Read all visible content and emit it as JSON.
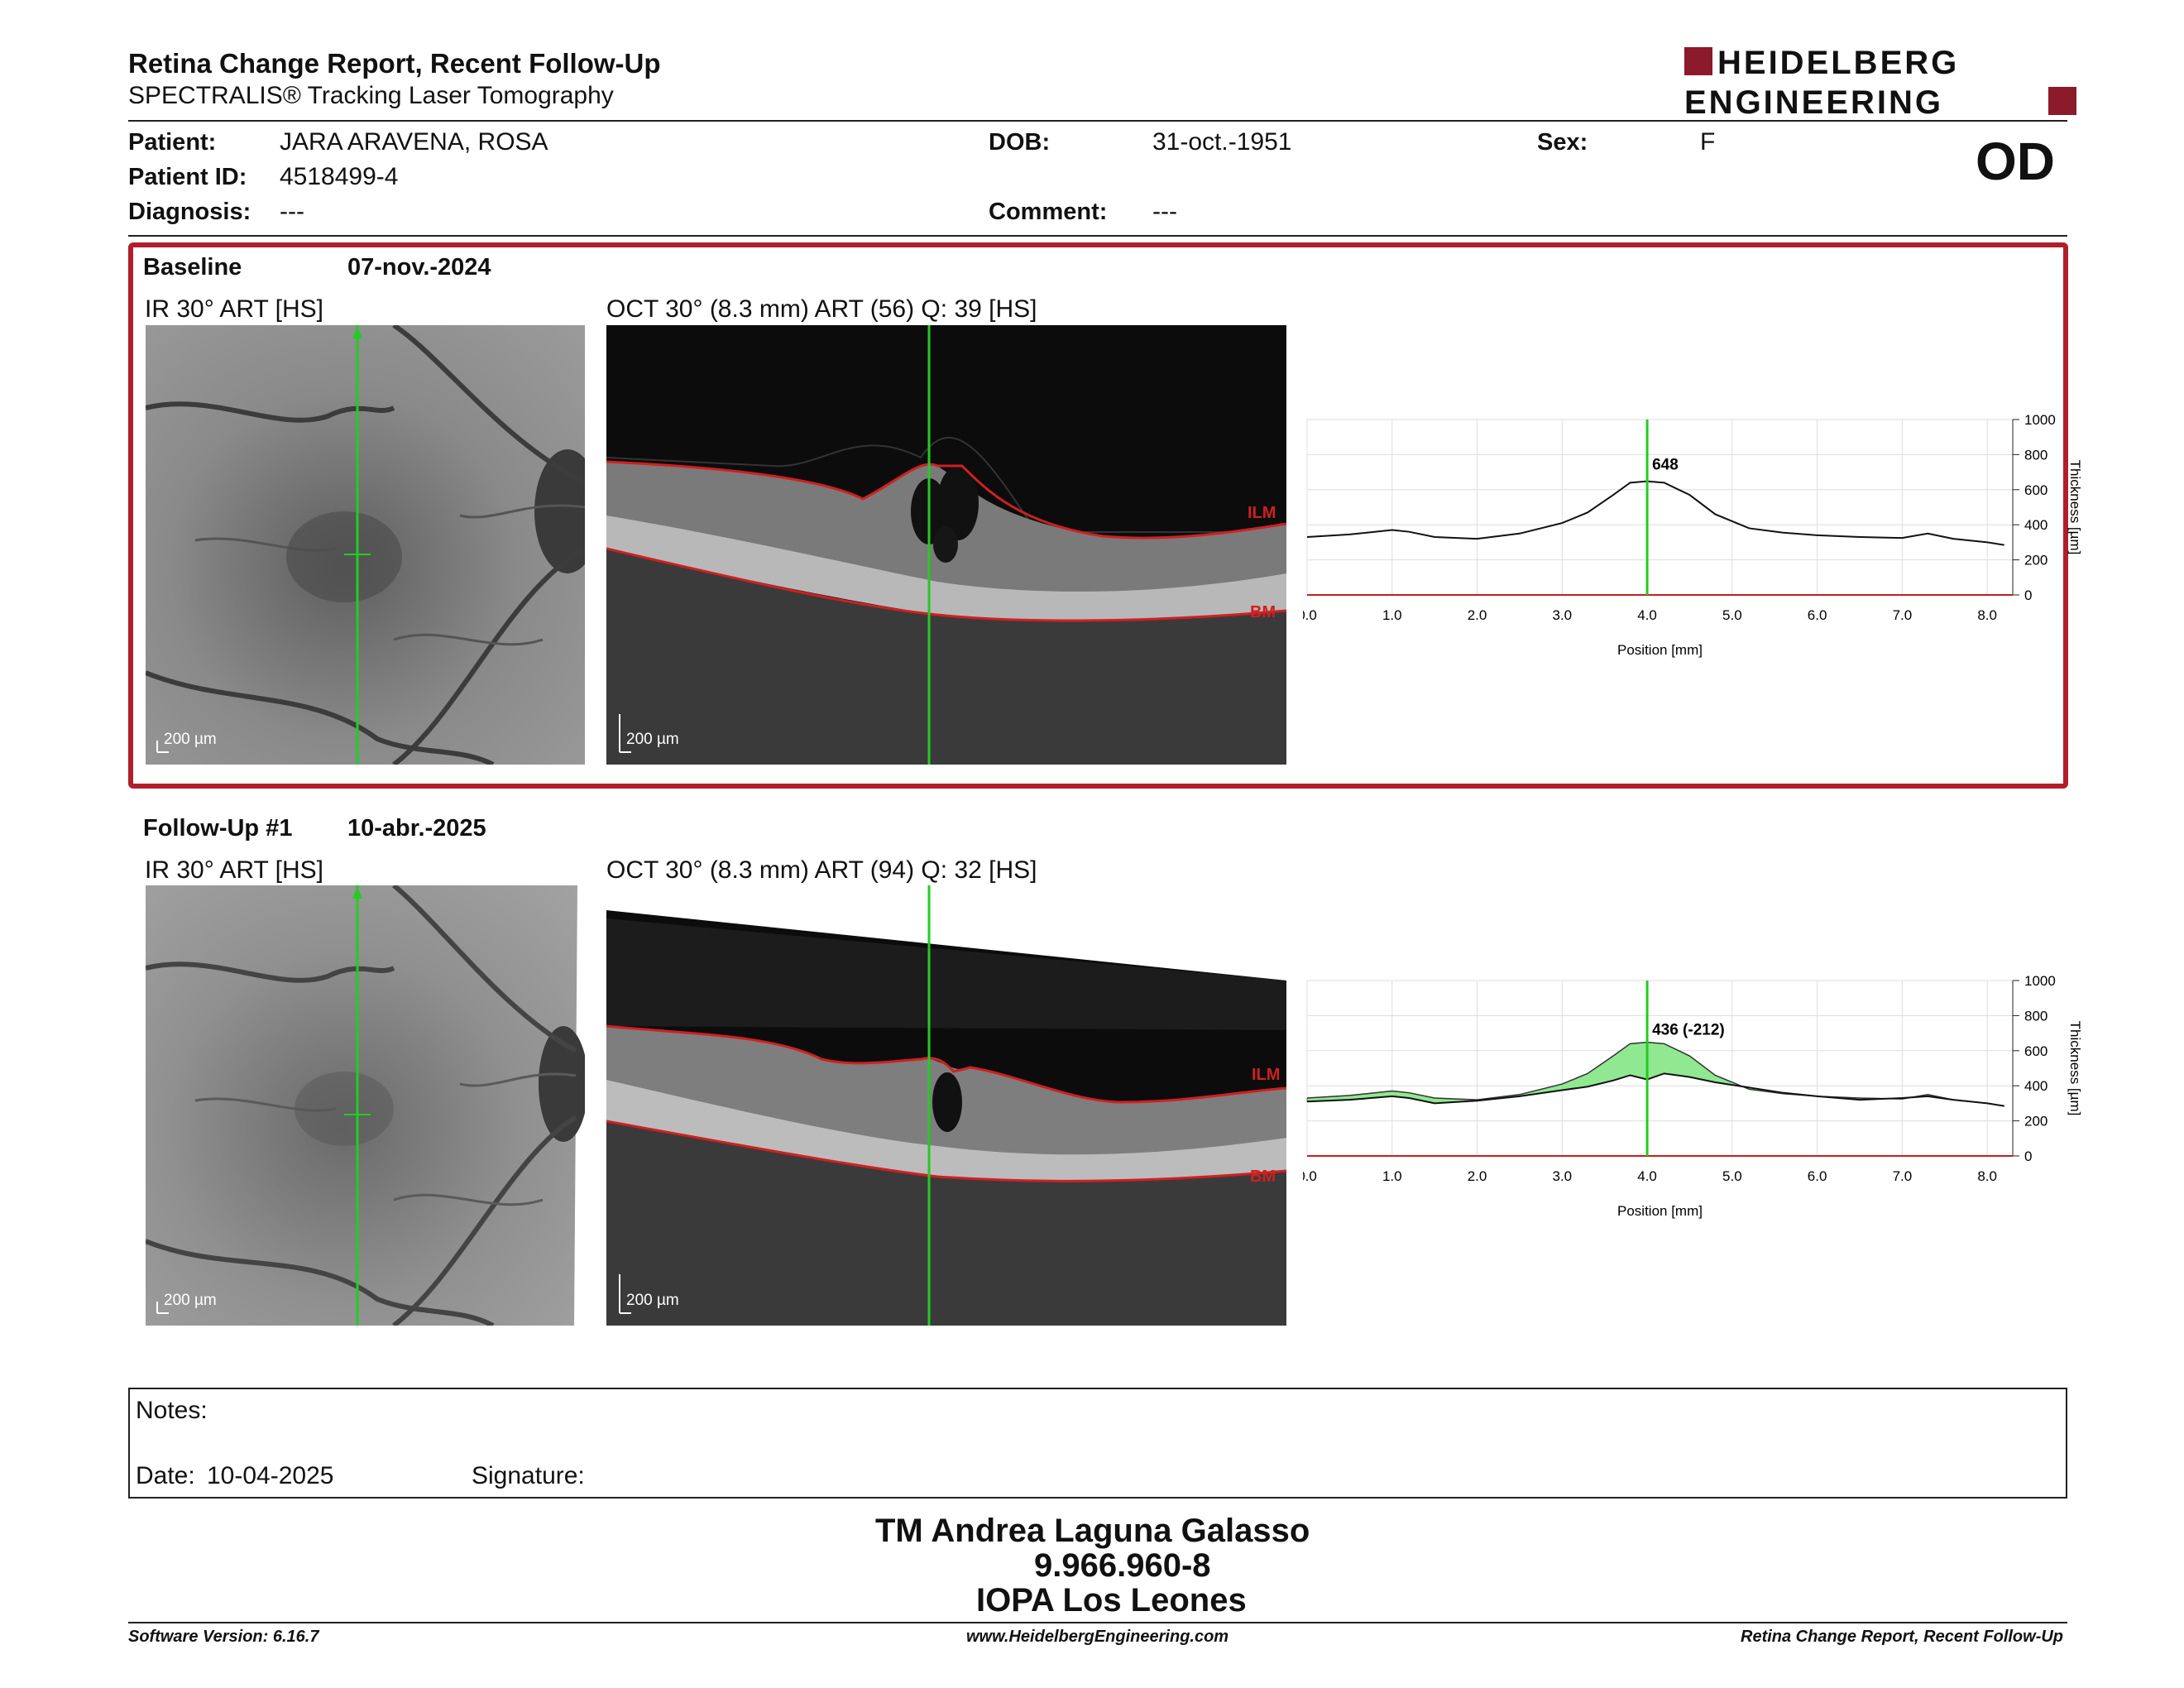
{
  "header": {
    "title": "Retina Change Report, Recent Follow-Up",
    "subtitle": "SPECTRALIS® Tracking Laser Tomography",
    "logo_line1": "HEIDELBERG",
    "logo_line2": "ENGINEERING",
    "eye": "OD"
  },
  "patient": {
    "name_label": "Patient:",
    "name": "JARA ARAVENA, ROSA",
    "id_label": "Patient ID:",
    "id": "4518499-4",
    "diag_label": "Diagnosis:",
    "diag": "---",
    "dob_label": "DOB:",
    "dob": "31-oct.-1951",
    "comment_label": "Comment:",
    "comment": "---",
    "sex_label": "Sex:",
    "sex": "F"
  },
  "baseline": {
    "label": "Baseline",
    "date": "07-nov.-2024",
    "ir_caption": "IR 30° ART [HS]",
    "oct_caption": "OCT 30° (8.3 mm) ART (56) Q: 39 [HS]",
    "scale_ir": "200 µm",
    "scale_oct": "200 µm",
    "ilm": "ILM",
    "bm": "BM"
  },
  "followup": {
    "label": "Follow-Up #1",
    "date": "10-abr.-2025",
    "ir_caption": "IR 30° ART [HS]",
    "oct_caption": "OCT 30° (8.3 mm) ART (94) Q: 32 [HS]",
    "scale_ir": "200 µm",
    "scale_oct": "200 µm",
    "ilm": "ILM",
    "bm": "BM"
  },
  "chart_data": [
    {
      "type": "line",
      "xlabel": "Position [mm]",
      "ylabel": "Thickness [µm]",
      "xlim": [
        0,
        8.3
      ],
      "ylim": [
        0,
        1000
      ],
      "xticks": [
        "0.0",
        "1.0",
        "2.0",
        "3.0",
        "4.0",
        "5.0",
        "6.0",
        "7.0",
        "8.0"
      ],
      "yticks": [
        "0",
        "200",
        "400",
        "600",
        "800",
        "1000"
      ],
      "marker_x": 4.0,
      "marker_label": "648",
      "series": [
        {
          "x": [
            0,
            0.5,
            1.0,
            1.2,
            1.5,
            2.0,
            2.5,
            3.0,
            3.3,
            3.6,
            3.8,
            4.0,
            4.2,
            4.5,
            4.8,
            5.2,
            5.6,
            6.0,
            6.5,
            7.0,
            7.3,
            7.6,
            8.0,
            8.2
          ],
          "y": [
            330,
            345,
            370,
            360,
            330,
            320,
            350,
            410,
            470,
            570,
            640,
            648,
            640,
            570,
            460,
            380,
            355,
            340,
            330,
            325,
            350,
            320,
            300,
            285
          ]
        }
      ]
    },
    {
      "type": "line",
      "xlabel": "Position [mm]",
      "ylabel": "Thickness [µm]",
      "xlim": [
        0,
        8.3
      ],
      "ylim": [
        0,
        1000
      ],
      "xticks": [
        "0.0",
        "1.0",
        "2.0",
        "3.0",
        "4.0",
        "5.0",
        "6.0",
        "7.0",
        "8.0"
      ],
      "yticks": [
        "0",
        "200",
        "400",
        "600",
        "800",
        "1000"
      ],
      "marker_x": 4.0,
      "marker_label": "436 (-212)",
      "series": [
        {
          "x": [
            0,
            0.5,
            1.0,
            1.2,
            1.5,
            2.0,
            2.5,
            3.0,
            3.3,
            3.6,
            3.8,
            4.0,
            4.2,
            4.5,
            4.8,
            5.2,
            5.6,
            6.0,
            6.5,
            7.0,
            7.3,
            7.6,
            8.0,
            8.2
          ],
          "y": [
            330,
            345,
            370,
            360,
            330,
            320,
            350,
            410,
            470,
            570,
            640,
            648,
            640,
            570,
            460,
            380,
            355,
            340,
            330,
            325,
            350,
            320,
            300,
            285
          ]
        },
        {
          "x": [
            0,
            0.5,
            1.0,
            1.2,
            1.5,
            2.0,
            2.5,
            3.0,
            3.3,
            3.6,
            3.8,
            4.0,
            4.2,
            4.5,
            4.8,
            5.2,
            5.6,
            6.0,
            6.5,
            7.0,
            7.3,
            7.6,
            8.0,
            8.2
          ],
          "y": [
            310,
            320,
            340,
            330,
            300,
            315,
            340,
            375,
            395,
            430,
            460,
            436,
            470,
            450,
            420,
            390,
            360,
            340,
            320,
            330,
            340,
            320,
            300,
            285
          ]
        }
      ]
    }
  ],
  "notes": {
    "label": "Notes:",
    "date_label": "Date:",
    "date": "10-04-2025",
    "signature_label": "Signature:"
  },
  "signature": {
    "line1": "TM Andrea Laguna Galasso",
    "line2": "9.966.960-8",
    "line3": "IOPA Los Leones"
  },
  "footer": {
    "left": "Software Version: 6.16.7",
    "center": "www.HeidelbergEngineering.com",
    "right": "Retina Change Report, Recent Follow-Up"
  },
  "colors": {
    "accent": "#b01e2a",
    "marker": "#22cc22",
    "ilm": "#cc2222",
    "fill_thick": "#90e890",
    "fill_thin": "#e06060"
  }
}
